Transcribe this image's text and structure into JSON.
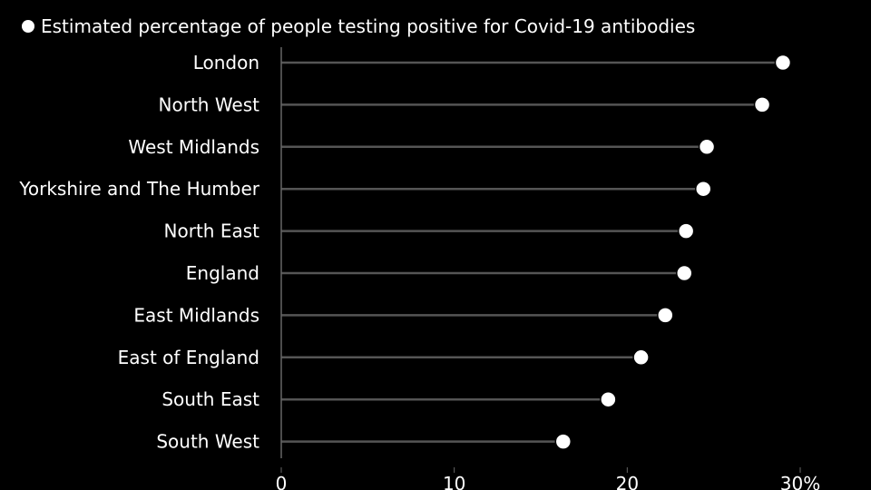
{
  "chart_data": {
    "type": "lollipop",
    "legend": {
      "label": "Estimated percentage of people testing positive for Covid-19 antibodies",
      "placement": "top-left",
      "marker": "filled-circle"
    },
    "categories": [
      "London",
      "North West",
      "West Midlands",
      "Yorkshire and The Humber",
      "North East",
      "England",
      "East Midlands",
      "East of England",
      "South East",
      "South West"
    ],
    "values": [
      29.0,
      27.8,
      24.6,
      24.4,
      23.4,
      23.3,
      22.2,
      20.8,
      18.9,
      16.3
    ],
    "xlim": [
      0,
      30
    ],
    "x_ticks": [
      0,
      10,
      20,
      30
    ],
    "x_tick_labels": [
      "0",
      "10",
      "20",
      "30%"
    ],
    "grid": false
  },
  "colors": {
    "background": "#000000",
    "text": "#ffffff",
    "stem": "#555555",
    "axis": "#666666",
    "marker_fill": "#ffffff",
    "marker_stroke": "#000000"
  }
}
